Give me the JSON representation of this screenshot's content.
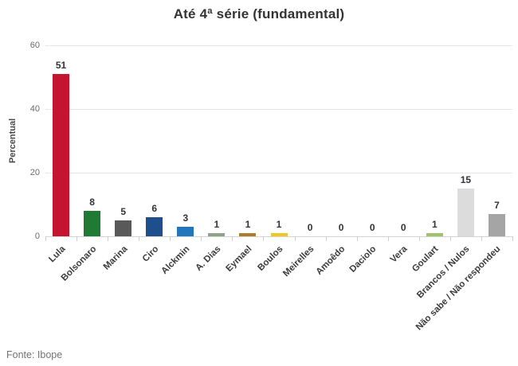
{
  "chart_data": {
    "type": "bar",
    "title": "Até 4ª série (fundamental)",
    "ylabel": "Percentual",
    "ylim": [
      0,
      60
    ],
    "yticks": [
      0,
      20,
      40,
      60
    ],
    "grid": "horizontal",
    "legend_position": "none",
    "categories": [
      "Lula",
      "Bolsonaro",
      "Marina",
      "Ciro",
      "Alckmin",
      "A. Dias",
      "Eymael",
      "Boulos",
      "Meirelles",
      "Amoêdo",
      "Daciolo",
      "Vera",
      "Goulart",
      "Brancos / Nulos",
      "Não sabe / Não respondeu"
    ],
    "values": [
      51,
      8,
      5,
      6,
      3,
      1,
      1,
      1,
      0,
      0,
      0,
      0,
      1,
      15,
      7
    ],
    "bar_colors": [
      "#c41430",
      "#1f7a33",
      "#595959",
      "#1f4e8c",
      "#2176bd",
      "#8fa389",
      "#ab7f2a",
      "#edc928",
      null,
      null,
      null,
      null,
      "#9dc36f",
      "#dcdcdc",
      "#a5a5a5"
    ],
    "source": "Fonte: Ibope"
  },
  "colors": {
    "title_text": "#333333",
    "value_label_text": "#32323c",
    "axis_tick_text": "#6b6b6b",
    "category_text": "#3c3c3c",
    "grid_line": "#e6e6e6",
    "axis_line": "#d4d4d4",
    "source_text": "#737373"
  }
}
